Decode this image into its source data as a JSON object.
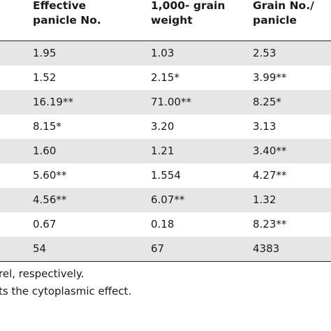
{
  "table": {
    "headers": [
      [
        "Effective",
        "panicle No."
      ],
      [
        "1,000- grain",
        "weight"
      ],
      [
        "Grain No./",
        "panicle"
      ]
    ],
    "rows": [
      [
        "1.95",
        "1.03",
        "2.53"
      ],
      [
        "1.52",
        "2.15*",
        "3.99**"
      ],
      [
        "16.19**",
        "71.00**",
        "8.25*"
      ],
      [
        "8.15*",
        "3.20",
        "3.13"
      ],
      [
        "1.60",
        "1.21",
        "3.40**"
      ],
      [
        "5.60**",
        "1.554",
        "4.27**"
      ],
      [
        "4.56**",
        "6.07**",
        "1.32"
      ],
      [
        "0.67",
        "0.18",
        "8.23**"
      ],
      [
        "54",
        "67",
        "4383"
      ]
    ]
  },
  "notes": [
    "rel, respectively.",
    "ts the cytoplasmic effect."
  ]
}
